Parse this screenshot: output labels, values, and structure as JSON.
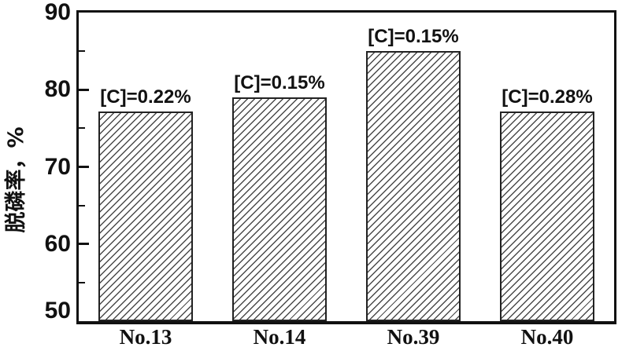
{
  "chart_data": {
    "type": "bar",
    "title": "",
    "xlabel": "",
    "ylabel": "脱磷率，%",
    "categories": [
      "No.13",
      "No.14",
      "No.39",
      "No.40"
    ],
    "values": [
      77.2,
      79.0,
      85.0,
      77.2
    ],
    "bar_labels": [
      "[C]=0.22%",
      "[C]=0.15%",
      "[C]=0.15%",
      "[C]=0.28%"
    ],
    "ylim": [
      50,
      90
    ],
    "y_ticks": [
      50,
      60,
      70,
      80,
      90
    ],
    "y_minor_ticks": [
      55,
      65,
      75,
      85
    ],
    "grid": false,
    "legend_position": "none",
    "bar_fill": "diagonal-hatch",
    "colors": {
      "axis": "#111111",
      "hatch_line": "#4a4a4a",
      "text": "#111111",
      "background": "#ffffff"
    }
  }
}
